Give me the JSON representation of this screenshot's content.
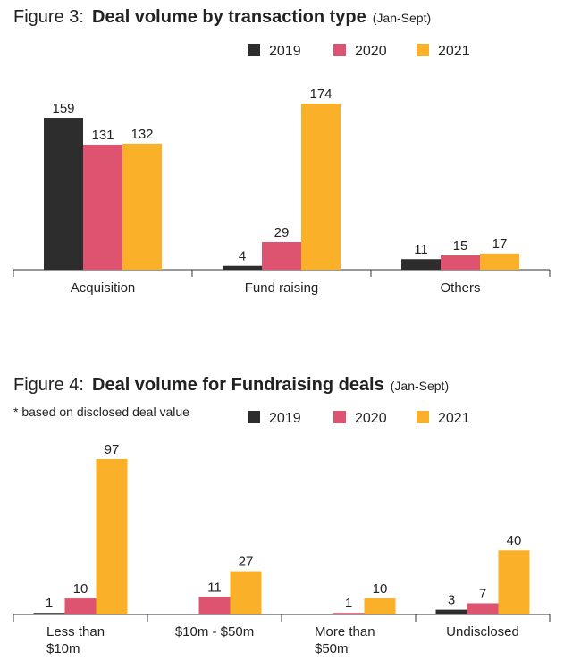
{
  "chart_data": [
    {
      "type": "bar",
      "figure": "Figure 3:",
      "title": "Deal volume by transaction type",
      "period": "(Jan-Sept)",
      "categories": [
        "Acquisition",
        "Fund raising",
        "Others"
      ],
      "series": [
        {
          "name": "2019",
          "color": "#2d2d2d",
          "values": [
            159,
            4,
            11
          ]
        },
        {
          "name": "2020",
          "color": "#de5470",
          "values": [
            131,
            29,
            15
          ]
        },
        {
          "name": "2021",
          "color": "#fbb02a",
          "values": [
            132,
            174,
            17
          ]
        }
      ]
    },
    {
      "type": "bar",
      "figure": "Figure 4:",
      "title": "Deal volume for Fundraising deals",
      "period": "(Jan-Sept)",
      "note": "* based on disclosed deal value",
      "categories": [
        "Less than\n$10m",
        "$10m - $50m",
        "More than\n$50m",
        "Undisclosed"
      ],
      "series": [
        {
          "name": "2019",
          "color": "#2d2d2d",
          "values": [
            1,
            null,
            null,
            3
          ]
        },
        {
          "name": "2020",
          "color": "#de5470",
          "values": [
            10,
            11,
            1,
            7
          ]
        },
        {
          "name": "2021",
          "color": "#fbb02a",
          "values": [
            97,
            27,
            10,
            40
          ]
        }
      ]
    }
  ]
}
